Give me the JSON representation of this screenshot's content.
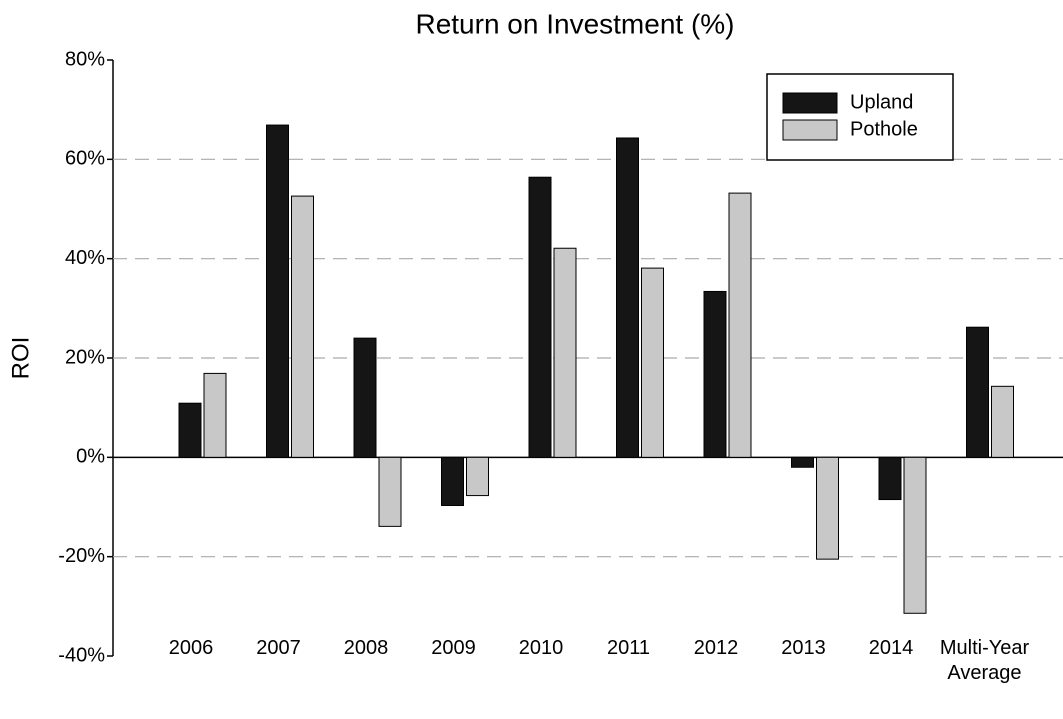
{
  "chart_data": {
    "type": "bar",
    "title": "Return on Investment (%)",
    "ylabel": "ROI",
    "categories": [
      "2006",
      "2007",
      "2008",
      "2009",
      "2010",
      "2011",
      "2012",
      "2013",
      "2014",
      "Multi-Year Average"
    ],
    "series": [
      {
        "name": "Upland",
        "color": "#151515",
        "values": [
          10.9,
          66.9,
          24.0,
          -9.7,
          56.4,
          64.3,
          33.4,
          -2.0,
          -8.5,
          26.2
        ]
      },
      {
        "name": "Pothole",
        "color": "#c8c8c8",
        "values": [
          16.9,
          52.6,
          -13.9,
          -7.7,
          42.1,
          38.1,
          53.2,
          -20.5,
          -31.4,
          14.3
        ]
      }
    ],
    "ylim": [
      -40,
      80
    ],
    "yticks": [
      {
        "value": -40,
        "label": "-40%"
      },
      {
        "value": -20,
        "label": "-20%"
      },
      {
        "value": 0,
        "label": "0%"
      },
      {
        "value": 20,
        "label": "20%"
      },
      {
        "value": 40,
        "label": "40%"
      },
      {
        "value": 60,
        "label": "60%"
      },
      {
        "value": 80,
        "label": "80%"
      }
    ],
    "grid": true,
    "legend": "upper right"
  }
}
